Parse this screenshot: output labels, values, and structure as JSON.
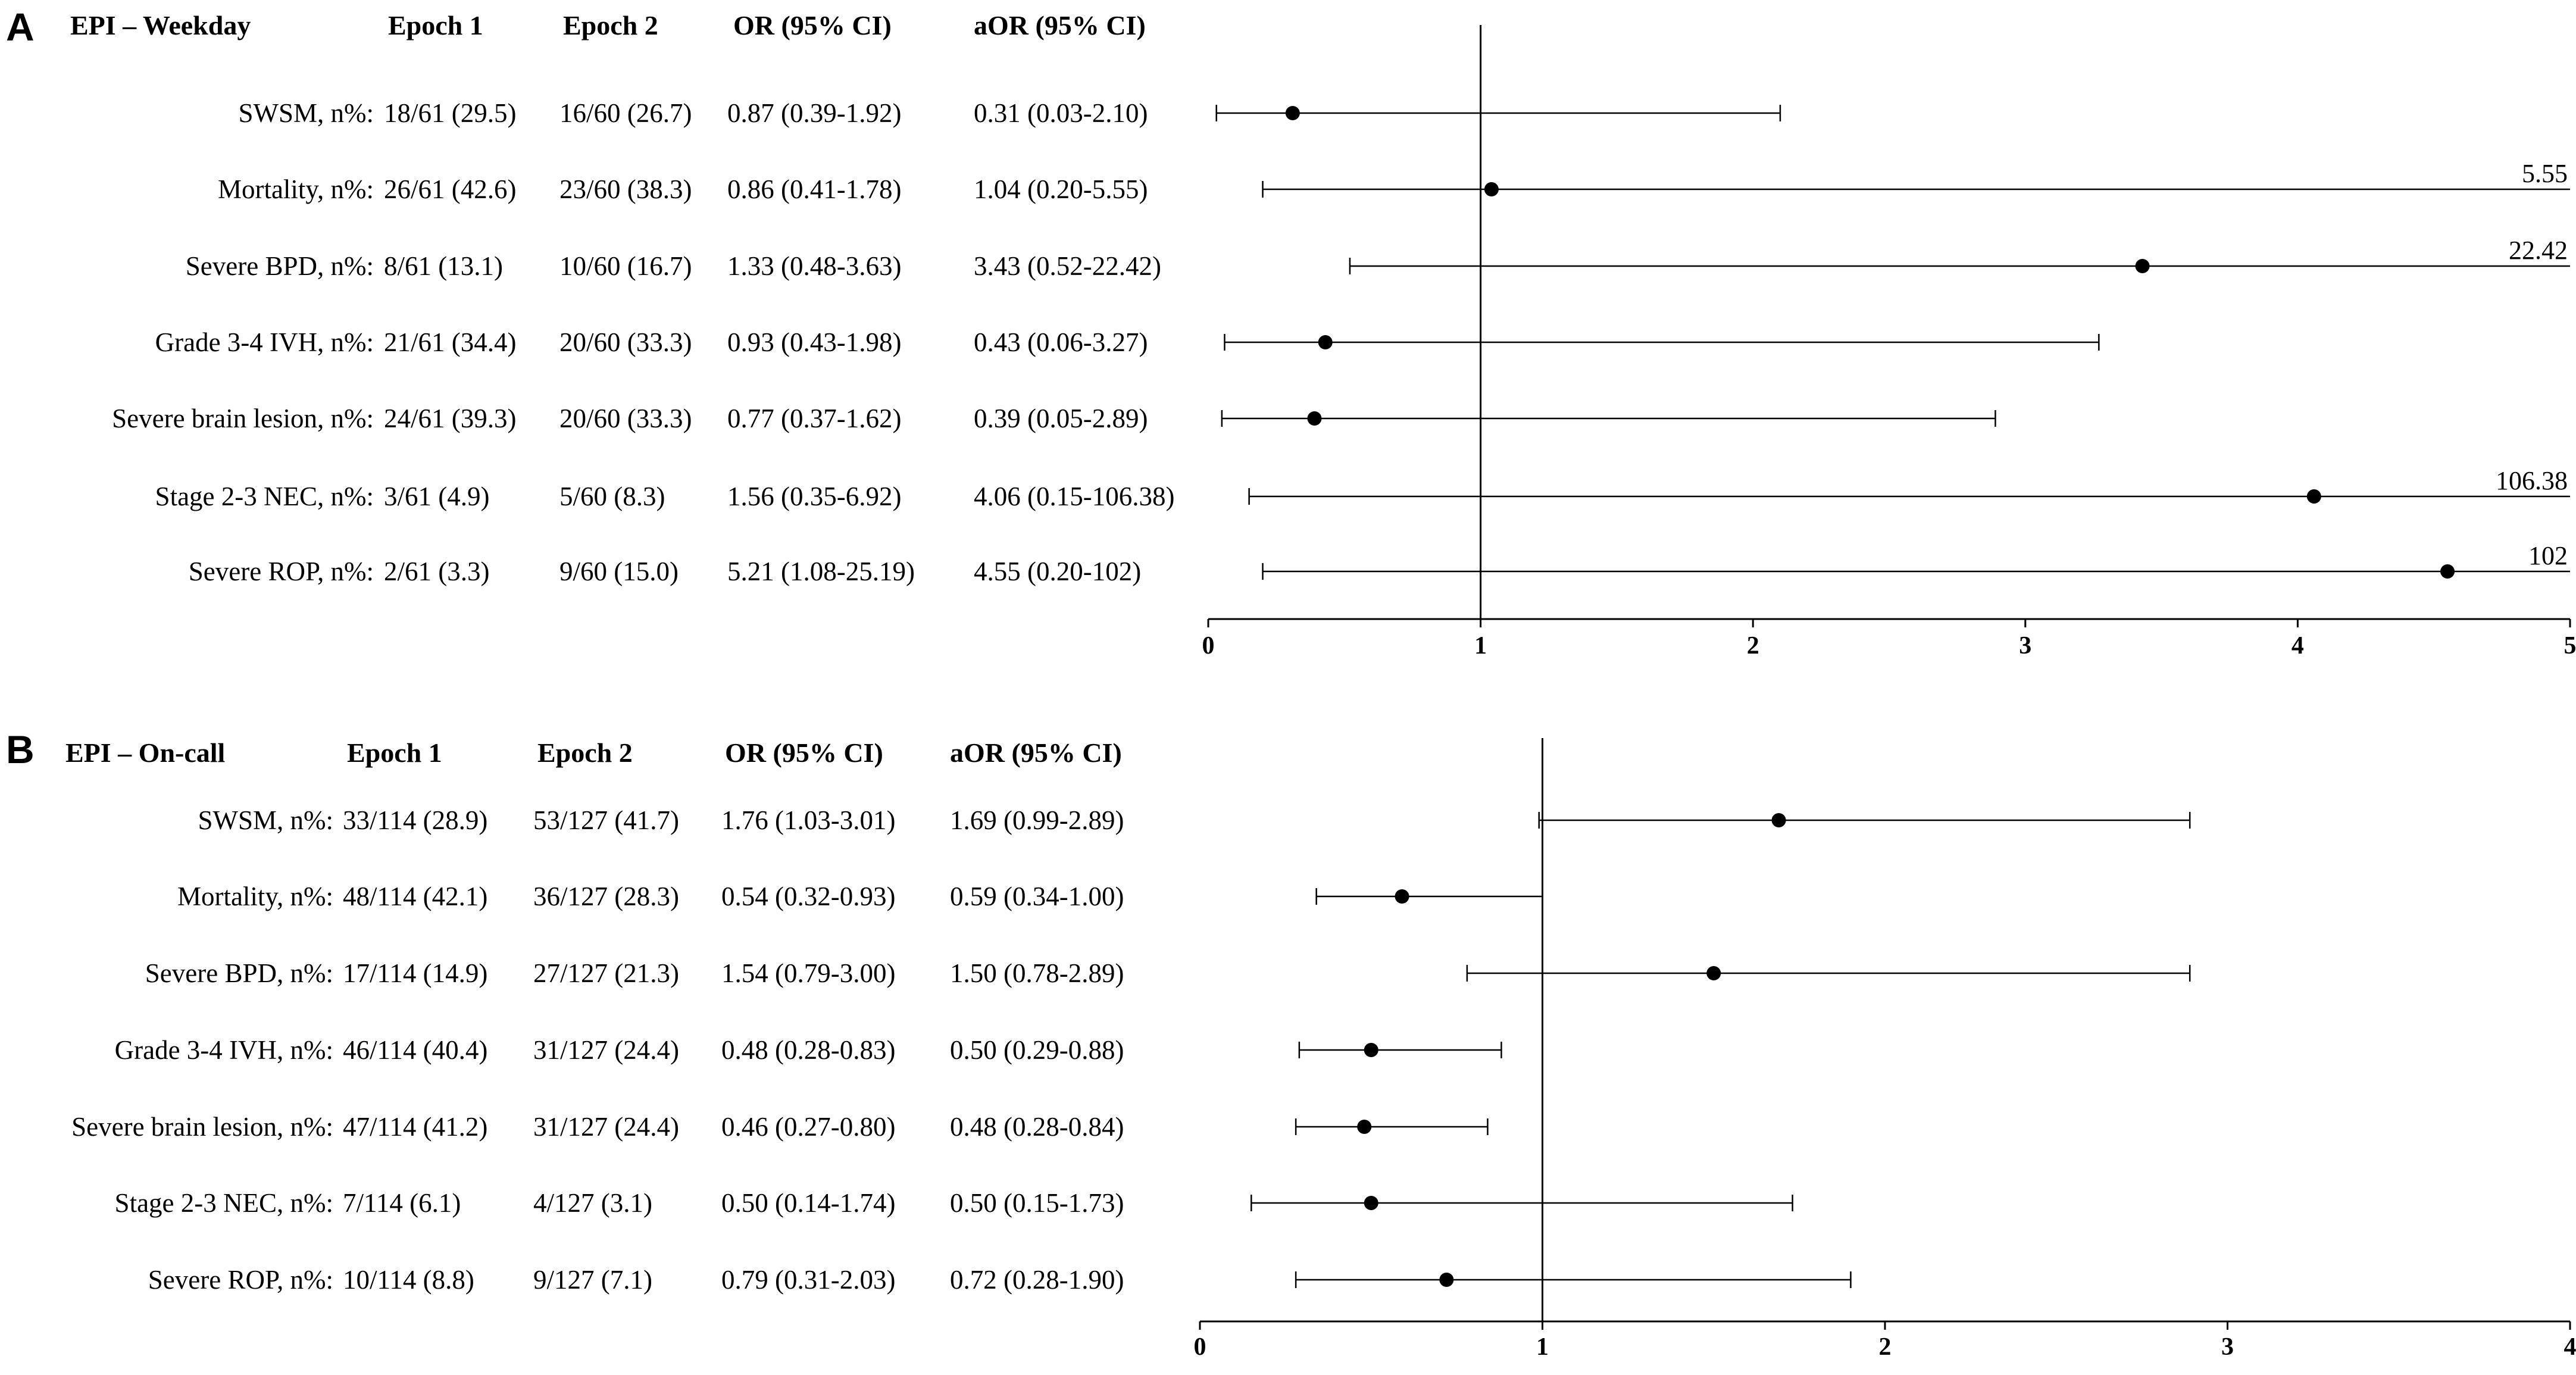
{
  "panels": [
    {
      "letter": "A",
      "title": "EPI – Weekday",
      "headers": {
        "epoch1": "Epoch 1",
        "epoch2": "Epoch 2",
        "or": "OR (95% CI)",
        "aor": "aOR (95% CI)"
      },
      "rows": [
        {
          "label": "SWSM, n%:",
          "epoch1": "18/61 (29.5)",
          "epoch2": "16/60 (26.7)",
          "or": "0.87 (0.39-1.92)",
          "aor": "0.31 (0.03-2.10)"
        },
        {
          "label": "Mortality, n%:",
          "epoch1": "26/61 (42.6)",
          "epoch2": "23/60 (38.3)",
          "or": "0.86 (0.41-1.78)",
          "aor": "1.04 (0.20-5.55)"
        },
        {
          "label": "Severe BPD, n%:",
          "epoch1": "8/61 (13.1)",
          "epoch2": "10/60 (16.7)",
          "or": "1.33 (0.48-3.63)",
          "aor": "3.43 (0.52-22.42)"
        },
        {
          "label": "Grade 3-4 IVH, n%:",
          "epoch1": "21/61 (34.4)",
          "epoch2": "20/60 (33.3)",
          "or": "0.93 (0.43-1.98)",
          "aor": "0.43 (0.06-3.27)"
        },
        {
          "label": "Severe brain lesion, n%:",
          "epoch1": "24/61 (39.3)",
          "epoch2": "20/60 (33.3)",
          "or": "0.77 (0.37-1.62)",
          "aor": "0.39 (0.05-2.89)"
        },
        {
          "label": "Stage 2-3 NEC, n%:",
          "epoch1": "3/61 (4.9)",
          "epoch2": "5/60 (8.3)",
          "or": "1.56 (0.35-6.92)",
          "aor": "4.06 (0.15-106.38)"
        },
        {
          "label": "Severe ROP, n%:",
          "epoch1": "2/61 (3.3)",
          "epoch2": "9/60 (15.0)",
          "or": "5.21 (1.08-25.19)",
          "aor": "4.55 (0.20-102)"
        }
      ]
    },
    {
      "letter": "B",
      "title": "EPI – On-call",
      "headers": {
        "epoch1": "Epoch 1",
        "epoch2": "Epoch 2",
        "or": "OR (95% CI)",
        "aor": "aOR (95% CI)"
      },
      "rows": [
        {
          "label": "SWSM, n%:",
          "epoch1": "33/114 (28.9)",
          "epoch2": "53/127 (41.7)",
          "or": "1.76 (1.03-3.01)",
          "aor": "1.69 (0.99-2.89)"
        },
        {
          "label": "Mortality, n%:",
          "epoch1": "48/114 (42.1)",
          "epoch2": "36/127 (28.3)",
          "or": "0.54 (0.32-0.93)",
          "aor": "0.59 (0.34-1.00)"
        },
        {
          "label": "Severe BPD, n%:",
          "epoch1": "17/114 (14.9)",
          "epoch2": "27/127 (21.3)",
          "or": "1.54 (0.79-3.00)",
          "aor": "1.50 (0.78-2.89)"
        },
        {
          "label": "Grade 3-4 IVH, n%:",
          "epoch1": "46/114 (40.4)",
          "epoch2": "31/127 (24.4)",
          "or": "0.48 (0.28-0.83)",
          "aor": "0.50 (0.29-0.88)"
        },
        {
          "label": "Severe brain lesion, n%:",
          "epoch1": "47/114 (41.2)",
          "epoch2": "31/127 (24.4)",
          "or": "0.46 (0.27-0.80)",
          "aor": "0.48 (0.28-0.84)"
        },
        {
          "label": "Stage 2-3 NEC, n%:",
          "epoch1": "7/114 (6.1)",
          "epoch2": "4/127 (3.1)",
          "or": "0.50 (0.14-1.74)",
          "aor": "0.50 (0.15-1.73)"
        },
        {
          "label": "Severe ROP, n%:",
          "epoch1": "10/114 (8.8)",
          "epoch2": "9/127 (7.1)",
          "or": "0.79 (0.31-2.03)",
          "aor": "0.72 (0.28-1.90)"
        }
      ]
    }
  ],
  "chart_data": [
    {
      "type": "forest",
      "panel": "A",
      "xlim": [
        0,
        5
      ],
      "xticks": [
        "0",
        "1",
        "2",
        "3",
        "4",
        "5"
      ],
      "reference_line": 1,
      "grid": false,
      "categories": [
        "SWSM",
        "Mortality",
        "Severe BPD",
        "Grade 3-4 IVH",
        "Severe brain lesion",
        "Stage 2-3 NEC",
        "Severe ROP"
      ],
      "points": [
        0.31,
        1.04,
        3.43,
        0.43,
        0.39,
        4.06,
        4.55
      ],
      "lower": [
        0.03,
        0.2,
        0.52,
        0.06,
        0.05,
        0.15,
        0.2
      ],
      "upper": [
        2.1,
        5.55,
        22.42,
        3.27,
        2.89,
        106.38,
        102
      ],
      "truncated_labels": [
        "",
        "5.55",
        "22.42",
        "",
        "",
        "106.38",
        "102"
      ]
    },
    {
      "type": "forest",
      "panel": "B",
      "xlim": [
        0,
        4
      ],
      "xticks": [
        "0",
        "1",
        "2",
        "3",
        "4"
      ],
      "reference_line": 1,
      "grid": false,
      "categories": [
        "SWSM",
        "Mortality",
        "Severe BPD",
        "Grade 3-4 IVH",
        "Severe brain lesion",
        "Stage 2-3 NEC",
        "Severe ROP"
      ],
      "points": [
        1.69,
        0.59,
        1.5,
        0.5,
        0.48,
        0.5,
        0.72
      ],
      "lower": [
        0.99,
        0.34,
        0.78,
        0.29,
        0.28,
        0.15,
        0.28
      ],
      "upper": [
        2.89,
        1.0,
        2.89,
        0.88,
        0.84,
        1.73,
        1.9
      ],
      "truncated_labels": [
        "",
        "",
        "",
        "",
        "",
        "",
        ""
      ]
    }
  ]
}
